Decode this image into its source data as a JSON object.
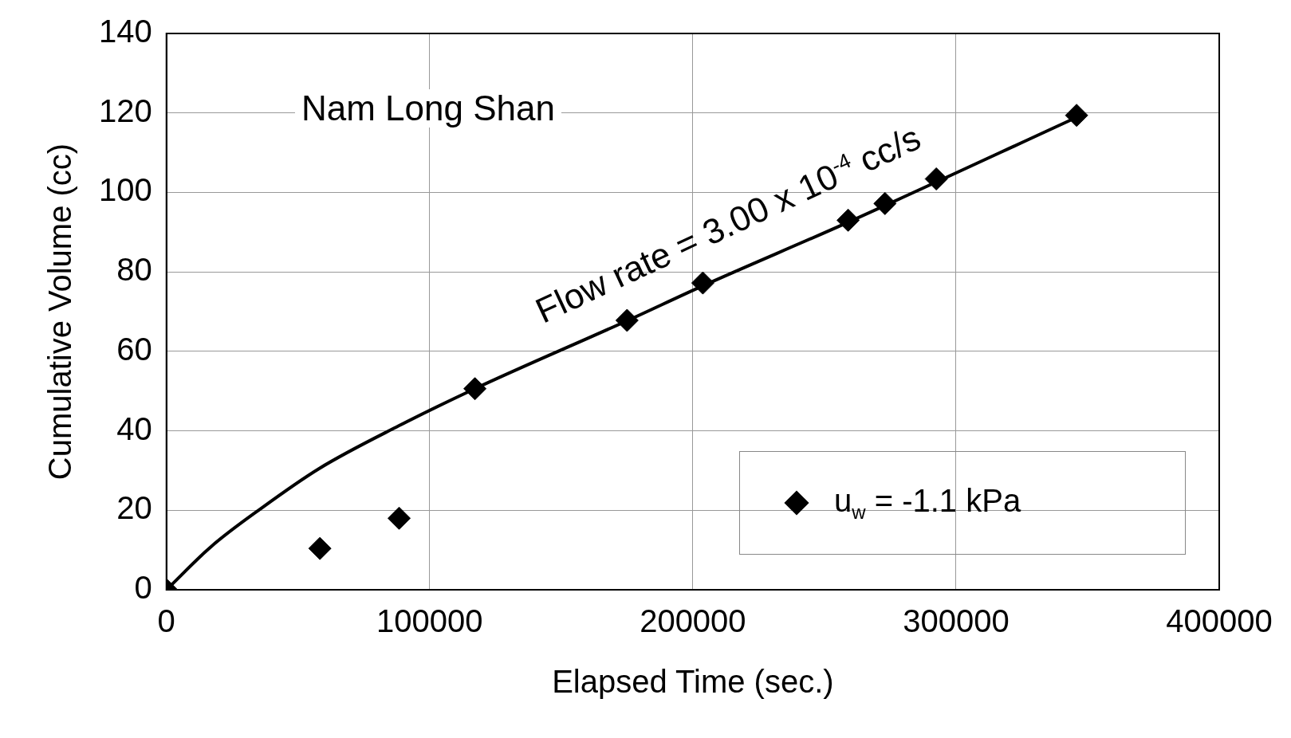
{
  "chart_data": {
    "type": "scatter",
    "xlabel": "Elapsed Time (sec.)",
    "ylabel": "Cumulative Volume (cc)",
    "xlim": [
      0,
      400000
    ],
    "xticks": [
      0,
      100000,
      200000,
      300000,
      400000
    ],
    "ylim": [
      0,
      140
    ],
    "yticks": [
      0,
      20,
      40,
      60,
      80,
      100,
      120,
      140
    ],
    "grid": true,
    "legend": "bottom right",
    "annotations": [
      "Nam Long Shan",
      "Flow rate = 3.00 x 10$^{-4}$ cc/s"
    ],
    "series": [
      {
        "name": "u$_{w}$ = -1.1 kPa",
        "marker": "diamond",
        "color": "#000000",
        "x": [
          0,
          58300,
          88400,
          117200,
          175000,
          203800,
          259000,
          273000,
          292500,
          345800
        ],
        "values": [
          0,
          10.4,
          18,
          50.6,
          67.8,
          77.2,
          93,
          97.2,
          103.4,
          119.4
        ]
      },
      {
        "type": "line",
        "marker": "none",
        "color": "#000000",
        "x": [
          0,
          17200,
          36000,
          58000,
          88400,
          117200,
          175000,
          203800,
          259000,
          345800
        ],
        "values": [
          0,
          11,
          20.5,
          30.5,
          41.3,
          50.6,
          67.7,
          76.5,
          92.5,
          118.9
        ]
      }
    ]
  }
}
